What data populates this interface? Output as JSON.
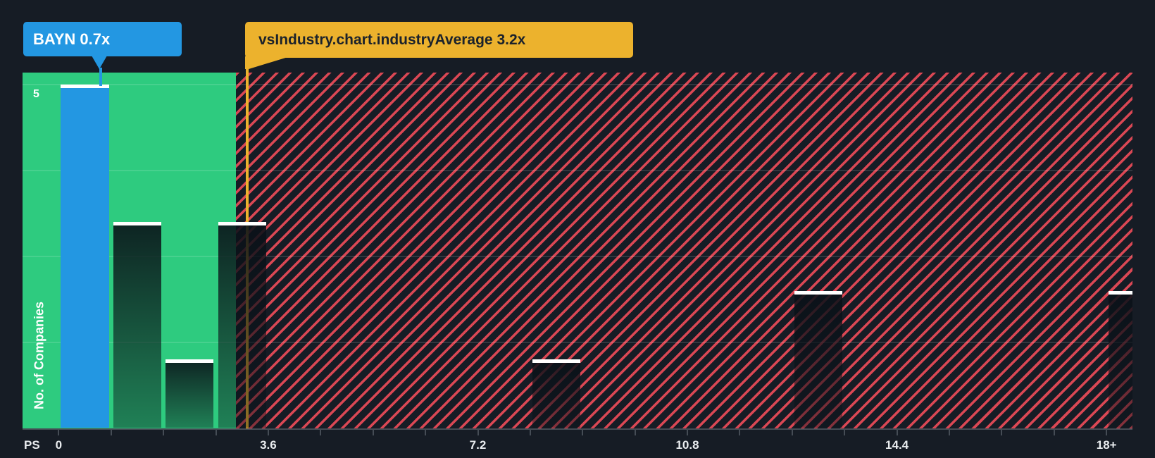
{
  "chart_data": {
    "type": "bar",
    "subtype": "histogram",
    "x_axis": {
      "title": "PS",
      "tick_labels": [
        "0",
        "3.6",
        "7.2",
        "10.8",
        "14.4",
        "18+"
      ],
      "tick_values": [
        0,
        3.6,
        7.2,
        10.8,
        14.4,
        18
      ],
      "minor_tick_interval": 0.9,
      "bin_width": 0.9,
      "range": [
        0,
        18.9
      ]
    },
    "y_axis": {
      "title": "No. of Companies",
      "tick_label": "5",
      "tick_value": 5,
      "gridline_values": [
        1.25,
        2.5,
        3.75,
        5
      ],
      "range": [
        0,
        5.2
      ],
      "grid": "on"
    },
    "bars": [
      {
        "from": 0.0,
        "to": 0.9,
        "count": 5,
        "highlight": "company"
      },
      {
        "from": 0.9,
        "to": 1.8,
        "count": 3
      },
      {
        "from": 1.8,
        "to": 2.7,
        "count": 1
      },
      {
        "from": 2.7,
        "to": 3.6,
        "count": 3
      },
      {
        "from": 8.1,
        "to": 9.0,
        "count": 1
      },
      {
        "from": 12.6,
        "to": 13.5,
        "count": 2
      },
      {
        "from": 18.0,
        "to": 18.9,
        "count": 2,
        "clipped_at_plot_edge": true
      }
    ],
    "markers": {
      "company": {
        "label": "BAYN 0.7x",
        "value": 0.7
      },
      "industry": {
        "label": "vsIndustry.chart.industryAverage 3.2x",
        "value": 3.2
      }
    },
    "zones": {
      "below_industry_average": {
        "from": 0,
        "to": 3.05,
        "style": "solid-green"
      },
      "above_industry_average": {
        "from": 3.05,
        "to": 18.45,
        "style": "red-diagonal-hatch"
      }
    },
    "legend": "none"
  },
  "colors": {
    "background": "#161c25",
    "zone_green": "#2ecb7f",
    "company_blue": "#2397e2",
    "industry_yellow": "#ecb22d",
    "hatch_red": "#eb4b58",
    "bar_dark_fill": "#0a1118",
    "bar_cap_white": "#ffffff",
    "axis_gray": "#454c55",
    "label_light": "#e9ecef",
    "tooltip_dark_text": "#1b222b"
  }
}
